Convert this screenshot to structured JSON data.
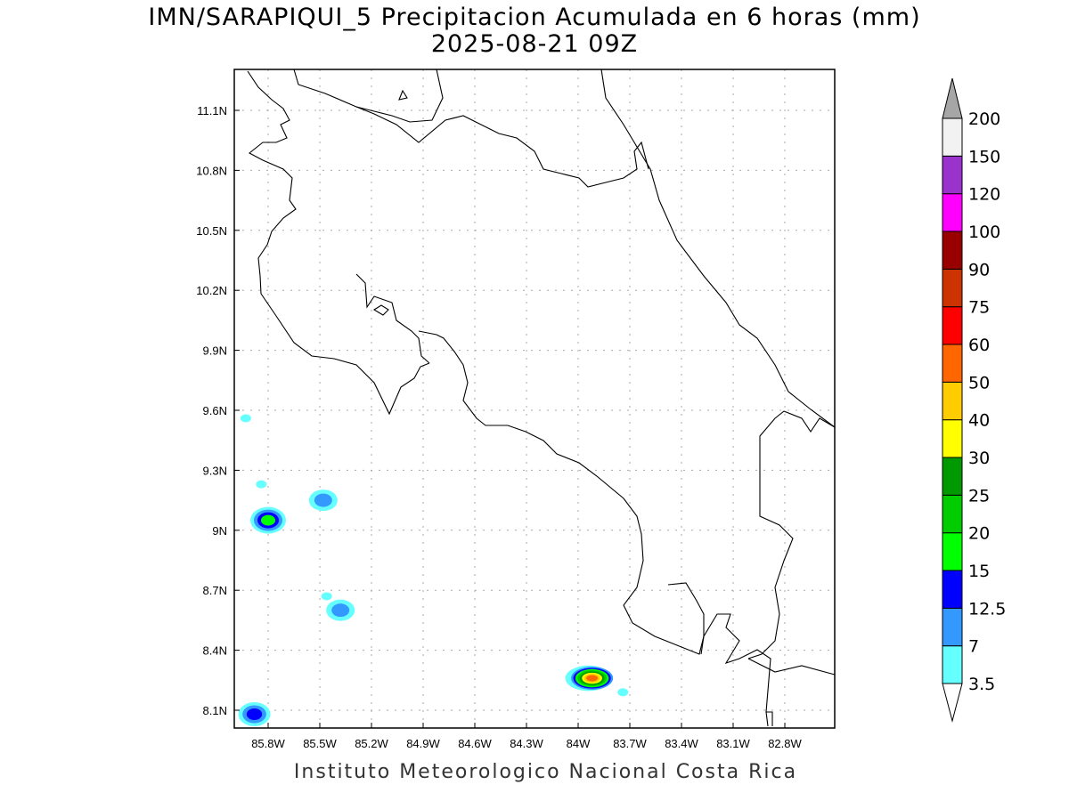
{
  "title": "IMN/SARAPIQUI_5 Precipitacion Acumulada en 6 horas (mm)",
  "subtitle": "2025-08-21 09Z",
  "credit": "Instituto Meteorologico Nacional Costa Rica",
  "map": {
    "lon_ticks": [
      "85.8W",
      "85.5W",
      "85.2W",
      "84.9W",
      "84.6W",
      "84.3W",
      "84W",
      "83.7W",
      "83.4W",
      "83.1W",
      "82.8W"
    ],
    "lat_ticks": [
      "11.1N",
      "10.8N",
      "10.5N",
      "10.2N",
      "9.9N",
      "9.6N",
      "9.3N",
      "9N",
      "8.7N",
      "8.4N",
      "8.1N"
    ],
    "grid": true
  },
  "colorbar": {
    "labels": [
      "3.5",
      "7",
      "12.5",
      "15",
      "20",
      "25",
      "30",
      "40",
      "50",
      "60",
      "75",
      "90",
      "100",
      "120",
      "150",
      "200"
    ],
    "colors": [
      "#66ffff",
      "#3399ff",
      "#0000ff",
      "#00ff00",
      "#00cc00",
      "#009900",
      "#ffff00",
      "#ffcc00",
      "#ff6600",
      "#ff0000",
      "#cc3300",
      "#990000",
      "#ff00ff",
      "#9933cc",
      "#f2f2f2"
    ],
    "under_color": "#ffffff",
    "over_color": "#a6a6a6"
  },
  "precip_cells": [
    {
      "lon": -85.8,
      "lat": 9.05,
      "max_level_index": 3
    },
    {
      "lon": -85.93,
      "lat": 9.56,
      "max_level_index": 0
    },
    {
      "lon": -85.84,
      "lat": 9.23,
      "max_level_index": 0
    },
    {
      "lon": -85.48,
      "lat": 9.15,
      "max_level_index": 1
    },
    {
      "lon": -85.46,
      "lat": 8.67,
      "max_level_index": 0
    },
    {
      "lon": -85.38,
      "lat": 8.6,
      "max_level_index": 1
    },
    {
      "lon": -85.88,
      "lat": 8.08,
      "max_level_index": 2
    },
    {
      "lon": -83.94,
      "lat": 8.26,
      "max_level_index": 8
    },
    {
      "lon": -83.74,
      "lat": 8.19,
      "max_level_index": 0
    }
  ]
}
